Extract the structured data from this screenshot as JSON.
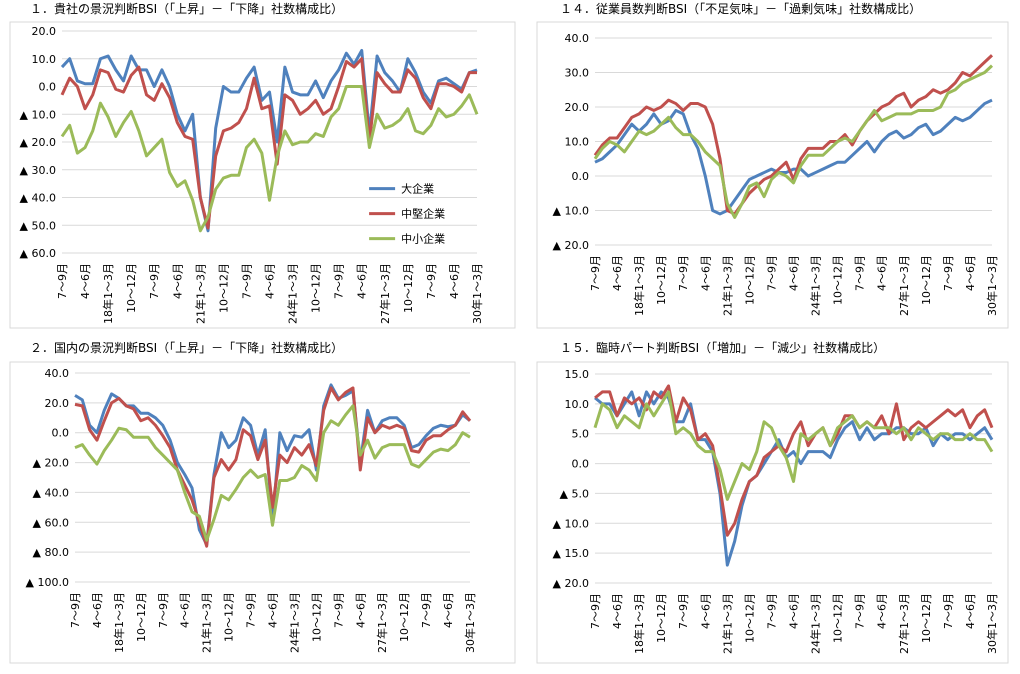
{
  "chart_data": [
    {
      "type": "line",
      "title": "１．貴社の景況判断BSI（「上昇」－「下降」社数構成比）",
      "categories": [
        "7～9月",
        null,
        null,
        "4～6月",
        null,
        null,
        "18年1～3月",
        null,
        null,
        "10～12月",
        null,
        null,
        "7～9月",
        null,
        null,
        "4～6月",
        null,
        null,
        "21年1～3月",
        null,
        null,
        "10～12月",
        null,
        null,
        "7～9月",
        null,
        null,
        "4～6月",
        null,
        null,
        "24年1～3月",
        null,
        null,
        "10～12月",
        null,
        null,
        "7～9月",
        null,
        null,
        "4～6月",
        null,
        null,
        "27年1～3月",
        null,
        null,
        "10～12月",
        null,
        null,
        "7～9月",
        null,
        null,
        "4～6月",
        null,
        null,
        "30年1～3月"
      ],
      "ylim": [
        -60,
        20
      ],
      "yticks": [
        {
          "value": 20,
          "label": "20.0"
        },
        {
          "value": 10,
          "label": "10.0"
        },
        {
          "value": 0,
          "label": "0.0"
        },
        {
          "value": -10,
          "label": "▲ 10.0"
        },
        {
          "value": -20,
          "label": "▲ 20.0"
        },
        {
          "value": -30,
          "label": "▲ 30.0"
        },
        {
          "value": -40,
          "label": "▲ 40.0"
        },
        {
          "value": -50,
          "label": "▲ 50.0"
        },
        {
          "value": -60,
          "label": "▲ 60.0"
        }
      ],
      "grid": true,
      "legend": "lower-right",
      "series": [
        {
          "name": "大企業",
          "color": "#4f81bd",
          "values": [
            7,
            10,
            2,
            1,
            1,
            10,
            11,
            6,
            2,
            11,
            6,
            6,
            0,
            6,
            0,
            -10,
            -16,
            -10,
            -40,
            -52,
            -15,
            0,
            -2,
            -2,
            3,
            7,
            -5,
            -2,
            -20,
            7,
            -2,
            -3,
            -3,
            2,
            -4,
            2,
            6,
            12,
            8,
            13,
            -17,
            11,
            5,
            2,
            -2,
            10,
            5,
            -2,
            -6,
            2,
            3,
            1,
            -1,
            5,
            6
          ]
        },
        {
          "name": "中堅企業",
          "color": "#c0504d",
          "values": [
            -3,
            3,
            0,
            -8,
            -3,
            6,
            5,
            -1,
            -2,
            4,
            7,
            -3,
            -5,
            1,
            -4,
            -13,
            -18,
            -19,
            -40,
            -51,
            -25,
            -16,
            -15,
            -13,
            -8,
            3,
            -8,
            -7,
            -28,
            -3,
            -5,
            -10,
            -8,
            -5,
            -10,
            -8,
            0,
            9,
            7,
            10,
            -20,
            5,
            1,
            -2,
            -2,
            6,
            3,
            -4,
            -8,
            1,
            1,
            0,
            -2,
            5,
            5
          ]
        },
        {
          "name": "中小企業",
          "color": "#9bbb59",
          "values": [
            -18,
            -14,
            -24,
            -22,
            -16,
            -6,
            -11,
            -18,
            -13,
            -9,
            -16,
            -25,
            -22,
            -19,
            -31,
            -36,
            -34,
            -41,
            -52,
            -47,
            -37,
            -33,
            -32,
            -32,
            -22,
            -19,
            -24,
            -41,
            -25,
            -16,
            -21,
            -20,
            -20,
            -17,
            -18,
            -11,
            -8,
            0,
            0,
            0,
            -22,
            -10,
            -15,
            -14,
            -12,
            -8,
            -16,
            -17,
            -14,
            -8,
            -11,
            -10,
            -7,
            -3,
            -10
          ]
        }
      ]
    },
    {
      "type": "line",
      "title": "１４．従業員数判断BSI（「不足気味」－「過剰気味」社数構成比）",
      "categories": [
        "7～9月",
        null,
        null,
        "4～6月",
        null,
        null,
        "18年1～3月",
        null,
        null,
        "10～12月",
        null,
        null,
        "7～9月",
        null,
        null,
        "4～6月",
        null,
        null,
        "21年1～3月",
        null,
        null,
        "10～12月",
        null,
        null,
        "7～9月",
        null,
        null,
        "4～6月",
        null,
        null,
        "24年1～3月",
        null,
        null,
        "10～12月",
        null,
        null,
        "7～9月",
        null,
        null,
        "4～6月",
        null,
        null,
        "27年1～3月",
        null,
        null,
        "10～12月",
        null,
        null,
        "7～9月",
        null,
        null,
        "4～6月",
        null,
        null,
        "30年1～3月"
      ],
      "ylim": [
        -20,
        40
      ],
      "yticks": [
        {
          "value": 40,
          "label": "40.0"
        },
        {
          "value": 30,
          "label": "30.0"
        },
        {
          "value": 20,
          "label": "20.0"
        },
        {
          "value": 10,
          "label": "10.0"
        },
        {
          "value": 0,
          "label": "0.0"
        },
        {
          "value": -10,
          "label": "▲ 10.0"
        },
        {
          "value": -20,
          "label": "▲ 20.0"
        }
      ],
      "grid": true,
      "series": [
        {
          "color": "#4f81bd",
          "values": [
            4,
            5,
            7,
            9,
            12,
            15,
            13,
            15,
            18,
            15,
            16,
            19,
            18,
            12,
            8,
            0,
            -10,
            -11,
            -10,
            -7,
            -4,
            -1,
            0,
            1,
            2,
            1,
            1,
            2,
            2,
            0,
            1,
            2,
            3,
            4,
            4,
            6,
            8,
            10,
            7,
            10,
            12,
            13,
            11,
            12,
            14,
            15,
            12,
            13,
            15,
            17,
            16,
            17,
            19,
            21,
            22
          ]
        },
        {
          "color": "#c0504d",
          "values": [
            6,
            9,
            11,
            11,
            14,
            17,
            18,
            20,
            19,
            20,
            22,
            21,
            19,
            21,
            21,
            20,
            15,
            5,
            -10,
            -11,
            -8,
            -5,
            -3,
            -1,
            0,
            2,
            4,
            -1,
            5,
            8,
            8,
            8,
            10,
            10,
            12,
            9,
            13,
            16,
            18,
            20,
            21,
            23,
            24,
            20,
            22,
            23,
            25,
            24,
            25,
            27,
            30,
            29,
            31,
            33,
            35
          ]
        },
        {
          "color": "#9bbb59",
          "values": [
            5,
            8,
            10,
            9,
            7,
            10,
            13,
            12,
            13,
            15,
            17,
            14,
            12,
            12,
            10,
            7,
            5,
            3,
            -8,
            -12,
            -8,
            -3,
            -2,
            -6,
            -1,
            1,
            0,
            -2,
            3,
            6,
            6,
            6,
            8,
            10,
            11,
            10,
            13,
            16,
            19,
            16,
            17,
            18,
            18,
            18,
            19,
            19,
            19,
            20,
            24,
            25,
            27,
            28,
            29,
            30,
            32
          ]
        }
      ]
    },
    {
      "type": "line",
      "title": "２．国内の景況判断BSI（「上昇」－「下降」社数構成比）",
      "categories": [
        "7～9月",
        null,
        null,
        "4～6月",
        null,
        null,
        "18年1～3月",
        null,
        null,
        "10～12月",
        null,
        null,
        "7～9月",
        null,
        null,
        "4～6月",
        null,
        null,
        "21年1～3月",
        null,
        null,
        "10～12月",
        null,
        null,
        "7～9月",
        null,
        null,
        "4～6月",
        null,
        null,
        "24年1～3月",
        null,
        null,
        "10～12月",
        null,
        null,
        "7～9月",
        null,
        null,
        "4～6月",
        null,
        null,
        "27年1～3月",
        null,
        null,
        "10～12月",
        null,
        null,
        "7～9月",
        null,
        null,
        "4～6月",
        null,
        null,
        "30年1～3月"
      ],
      "ylim": [
        -100,
        40
      ],
      "yticks": [
        {
          "value": 40,
          "label": "40.0"
        },
        {
          "value": 20,
          "label": "20.0"
        },
        {
          "value": 0,
          "label": "0.0"
        },
        {
          "value": -20,
          "label": "▲ 20.0"
        },
        {
          "value": -40,
          "label": "▲ 40.0"
        },
        {
          "value": -60,
          "label": "▲ 60.0"
        },
        {
          "value": -80,
          "label": "▲ 80.0"
        },
        {
          "value": -100,
          "label": "▲ 100.0"
        }
      ],
      "grid": true,
      "series": [
        {
          "color": "#4f81bd",
          "values": [
            25,
            22,
            5,
            0,
            15,
            26,
            23,
            18,
            18,
            13,
            13,
            10,
            5,
            -5,
            -20,
            -28,
            -37,
            -65,
            -75,
            -28,
            0,
            -10,
            -5,
            10,
            5,
            -15,
            2,
            -60,
            0,
            -12,
            -2,
            -3,
            2,
            -25,
            18,
            32,
            23,
            25,
            28,
            -20,
            15,
            0,
            8,
            10,
            10,
            5,
            -10,
            -8,
            -2,
            3,
            5,
            4,
            5,
            12,
            8
          ]
        },
        {
          "color": "#c0504d",
          "values": [
            19,
            18,
            2,
            -5,
            8,
            20,
            23,
            18,
            16,
            8,
            10,
            5,
            -2,
            -10,
            -25,
            -35,
            -45,
            -60,
            -76,
            -30,
            -18,
            -25,
            -18,
            2,
            -2,
            -18,
            -5,
            -50,
            -15,
            -20,
            -10,
            -15,
            -8,
            -22,
            15,
            30,
            22,
            27,
            30,
            -25,
            10,
            0,
            5,
            3,
            5,
            3,
            -12,
            -13,
            -5,
            -2,
            -2,
            2,
            5,
            14,
            8
          ]
        },
        {
          "color": "#9bbb59",
          "values": [
            -10,
            -8,
            -15,
            -21,
            -12,
            -5,
            3,
            2,
            -3,
            -3,
            -3,
            -10,
            -15,
            -20,
            -25,
            -40,
            -53,
            -56,
            -72,
            -58,
            -42,
            -45,
            -38,
            -30,
            -25,
            -30,
            -28,
            -62,
            -32,
            -32,
            -30,
            -22,
            -25,
            -32,
            0,
            8,
            5,
            12,
            18,
            -15,
            -5,
            -17,
            -10,
            -8,
            -8,
            -8,
            -21,
            -23,
            -18,
            -13,
            -11,
            -12,
            -8,
            0,
            -3
          ]
        }
      ]
    },
    {
      "type": "line",
      "title": "１５．臨時パート判断BSI（「増加」－「減少」社数構成比）",
      "categories": [
        "7～9月",
        null,
        null,
        "4～6月",
        null,
        null,
        "18年1～3月",
        null,
        null,
        "10～12月",
        null,
        null,
        "7～9月",
        null,
        null,
        "4～6月",
        null,
        null,
        "21年1～3月",
        null,
        null,
        "10～12月",
        null,
        null,
        "7～9月",
        null,
        null,
        "4～6月",
        null,
        null,
        "24年1～3月",
        null,
        null,
        "10～12月",
        null,
        null,
        "7～9月",
        null,
        null,
        "4～6月",
        null,
        null,
        "27年1～3月",
        null,
        null,
        "10～12月",
        null,
        null,
        "7～9月",
        null,
        null,
        "4～6月",
        null,
        null,
        "30年1～3月"
      ],
      "ylim": [
        -20,
        15
      ],
      "yticks": [
        {
          "value": 15,
          "label": "15.0"
        },
        {
          "value": 10,
          "label": "10.0"
        },
        {
          "value": 5,
          "label": "5.0"
        },
        {
          "value": 0,
          "label": "0.0"
        },
        {
          "value": -5,
          "label": "▲ 5.0"
        },
        {
          "value": -10,
          "label": "▲ 10.0"
        },
        {
          "value": -15,
          "label": "▲ 15.0"
        },
        {
          "value": -20,
          "label": "▲ 20.0"
        }
      ],
      "grid": true,
      "series": [
        {
          "color": "#4f81bd",
          "values": [
            11,
            10,
            10,
            8,
            10,
            12,
            8,
            12,
            10,
            12,
            11,
            7,
            7,
            10,
            4,
            4,
            2,
            -5,
            -17,
            -13,
            -7,
            -3,
            -2,
            0,
            2,
            4,
            1,
            2,
            0,
            2,
            2,
            2,
            1,
            4,
            6,
            7,
            4,
            6,
            4,
            5,
            5,
            6,
            6,
            5,
            5,
            6,
            3,
            5,
            4,
            5,
            5,
            4,
            5,
            6,
            4
          ]
        },
        {
          "color": "#c0504d",
          "values": [
            11,
            12,
            12,
            8,
            11,
            10,
            11,
            9,
            12,
            11,
            13,
            7,
            11,
            9,
            4,
            5,
            3,
            -4,
            -12,
            -10,
            -6,
            -3,
            -2,
            1,
            2,
            3,
            2,
            5,
            7,
            3,
            5,
            6,
            3,
            5,
            8,
            8,
            6,
            7,
            6,
            8,
            5,
            10,
            4,
            6,
            7,
            6,
            7,
            8,
            9,
            8,
            9,
            6,
            8,
            9,
            6
          ]
        },
        {
          "color": "#9bbb59",
          "values": [
            6,
            10,
            9,
            6,
            8,
            7,
            6,
            10,
            8,
            10,
            12,
            5,
            6,
            5,
            3,
            2,
            2,
            -1,
            -6,
            -3,
            0,
            -1,
            2,
            7,
            6,
            3,
            1,
            -3,
            5,
            4,
            5,
            6,
            3,
            6,
            7,
            8,
            6,
            7,
            6,
            6,
            6,
            5,
            6,
            4,
            6,
            5,
            4,
            5,
            5,
            4,
            4,
            5,
            4,
            4,
            2
          ]
        }
      ]
    }
  ]
}
